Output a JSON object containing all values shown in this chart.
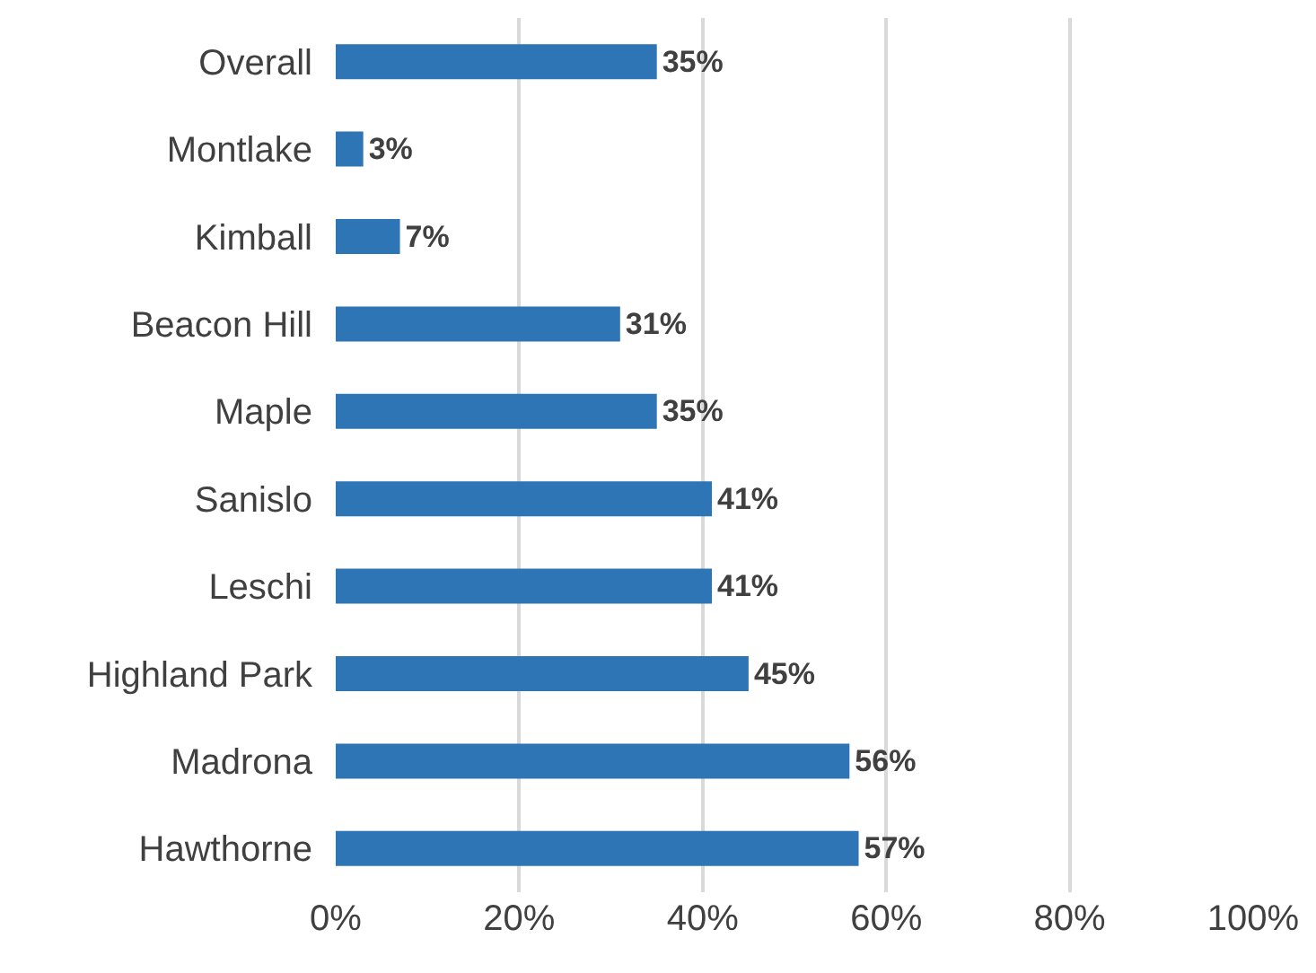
{
  "chart_data": {
    "type": "bar",
    "orientation": "horizontal",
    "categories": [
      "Overall",
      "Montlake",
      "Kimball",
      "Beacon Hill",
      "Maple",
      "Sanislo",
      "Leschi",
      "Highland Park",
      "Madrona",
      "Hawthorne"
    ],
    "values": [
      35,
      3,
      7,
      31,
      35,
      41,
      41,
      45,
      56,
      57
    ],
    "value_labels": [
      "35%",
      "3%",
      "7%",
      "31%",
      "35%",
      "41%",
      "41%",
      "45%",
      "56%",
      "57%"
    ],
    "color": "#2e75b6",
    "xlim": [
      0,
      100
    ],
    "xticks": [
      {
        "value": 0,
        "label": "0%"
      },
      {
        "value": 20,
        "label": "20%"
      },
      {
        "value": 40,
        "label": "40%"
      },
      {
        "value": 60,
        "label": "60%"
      },
      {
        "value": 80,
        "label": "80%"
      },
      {
        "value": 100,
        "label": "100%"
      }
    ],
    "grid": "x",
    "legend": false
  }
}
